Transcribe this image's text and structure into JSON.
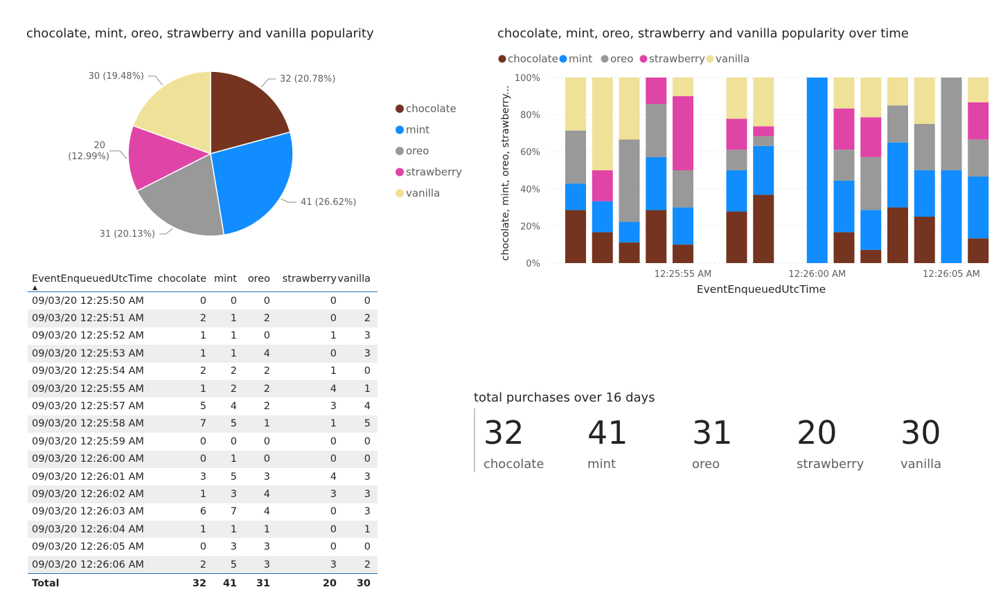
{
  "pie": {
    "title": "chocolate, mint, oreo, strawberry and vanilla popularity"
  },
  "bar": {
    "title": "chocolate, mint, oreo, strawberry and vanilla popularity over time",
    "ylabel": "chocolate, mint, oreo, strawberry...",
    "xlabel": "EventEnqueuedUtcTime",
    "yticks": [
      "0%",
      "20%",
      "40%",
      "60%",
      "80%",
      "100%"
    ],
    "xticks": [
      "12:25:55 AM",
      "12:26:00 AM",
      "12:26:05 AM"
    ]
  },
  "table": {
    "columns": [
      "EventEnqueuedUtcTime",
      "chocolate",
      "mint",
      "oreo",
      "strawberry",
      "vanilla"
    ],
    "rows": [
      [
        "09/03/20 12:25:50 AM",
        "0",
        "0",
        "0",
        "0",
        "0"
      ],
      [
        "09/03/20 12:25:51 AM",
        "2",
        "1",
        "2",
        "0",
        "2"
      ],
      [
        "09/03/20 12:25:52 AM",
        "1",
        "1",
        "0",
        "1",
        "3"
      ],
      [
        "09/03/20 12:25:53 AM",
        "1",
        "1",
        "4",
        "0",
        "3"
      ],
      [
        "09/03/20 12:25:54 AM",
        "2",
        "2",
        "2",
        "1",
        "0"
      ],
      [
        "09/03/20 12:25:55 AM",
        "1",
        "2",
        "2",
        "4",
        "1"
      ],
      [
        "09/03/20 12:25:57 AM",
        "5",
        "4",
        "2",
        "3",
        "4"
      ],
      [
        "09/03/20 12:25:58 AM",
        "7",
        "5",
        "1",
        "1",
        "5"
      ],
      [
        "09/03/20 12:25:59 AM",
        "0",
        "0",
        "0",
        "0",
        "0"
      ],
      [
        "09/03/20 12:26:00 AM",
        "0",
        "1",
        "0",
        "0",
        "0"
      ],
      [
        "09/03/20 12:26:01 AM",
        "3",
        "5",
        "3",
        "4",
        "3"
      ],
      [
        "09/03/20 12:26:02 AM",
        "1",
        "3",
        "4",
        "3",
        "3"
      ],
      [
        "09/03/20 12:26:03 AM",
        "6",
        "7",
        "4",
        "0",
        "3"
      ],
      [
        "09/03/20 12:26:04 AM",
        "1",
        "1",
        "1",
        "0",
        "1"
      ],
      [
        "09/03/20 12:26:05 AM",
        "0",
        "3",
        "3",
        "0",
        "0"
      ],
      [
        "09/03/20 12:26:06 AM",
        "2",
        "5",
        "3",
        "3",
        "2"
      ]
    ],
    "total": [
      "Total",
      "32",
      "41",
      "31",
      "20",
      "30"
    ]
  },
  "cards": {
    "title": "total purchases over 16 days",
    "items": [
      {
        "value": "32",
        "label": "chocolate"
      },
      {
        "value": "41",
        "label": "mint"
      },
      {
        "value": "31",
        "label": "oreo"
      },
      {
        "value": "20",
        "label": "strawberry"
      },
      {
        "value": "30",
        "label": "vanilla"
      }
    ]
  },
  "colors": {
    "chocolate": "#74341f",
    "mint": "#118dff",
    "oreo": "#999999",
    "strawberry": "#e044a7",
    "vanilla": "#f0e199"
  },
  "chart_data": [
    {
      "type": "pie",
      "title": "chocolate, mint, oreo, strawberry and vanilla popularity",
      "categories": [
        "chocolate",
        "mint",
        "oreo",
        "strawberry",
        "vanilla"
      ],
      "values": [
        32,
        41,
        31,
        20,
        30
      ],
      "data_labels": [
        "32 (20.78%)",
        "41 (26.62%)",
        "31 (20.13%)",
        "20 (12.99%)",
        "30 (19.48%)"
      ],
      "legend": "right"
    },
    {
      "type": "bar",
      "stacked": "100%",
      "title": "chocolate, mint, oreo, strawberry and vanilla popularity over time",
      "xlabel": "EventEnqueuedUtcTime",
      "ylabel": "chocolate, mint, oreo, strawberry...",
      "ylim": [
        0,
        100
      ],
      "x": [
        "12:25:51 AM",
        "12:25:52 AM",
        "12:25:53 AM",
        "12:25:54 AM",
        "12:25:55 AM",
        "12:25:57 AM",
        "12:25:58 AM",
        "12:26:00 AM",
        "12:26:01 AM",
        "12:26:02 AM",
        "12:26:03 AM",
        "12:26:04 AM",
        "12:26:05 AM",
        "12:26:06 AM"
      ],
      "series": [
        {
          "name": "chocolate",
          "values": [
            2,
            1,
            1,
            2,
            1,
            5,
            7,
            0,
            3,
            1,
            6,
            1,
            0,
            2
          ]
        },
        {
          "name": "mint",
          "values": [
            1,
            1,
            1,
            2,
            2,
            4,
            5,
            1,
            5,
            3,
            7,
            1,
            3,
            5
          ]
        },
        {
          "name": "oreo",
          "values": [
            2,
            0,
            4,
            2,
            2,
            2,
            1,
            0,
            3,
            4,
            4,
            1,
            3,
            3
          ]
        },
        {
          "name": "strawberry",
          "values": [
            0,
            1,
            0,
            1,
            4,
            3,
            1,
            0,
            4,
            3,
            0,
            0,
            0,
            3
          ]
        },
        {
          "name": "vanilla",
          "values": [
            2,
            3,
            3,
            0,
            1,
            4,
            5,
            0,
            3,
            3,
            3,
            1,
            0,
            2
          ]
        }
      ],
      "legend": "top-left",
      "grid": true
    }
  ]
}
